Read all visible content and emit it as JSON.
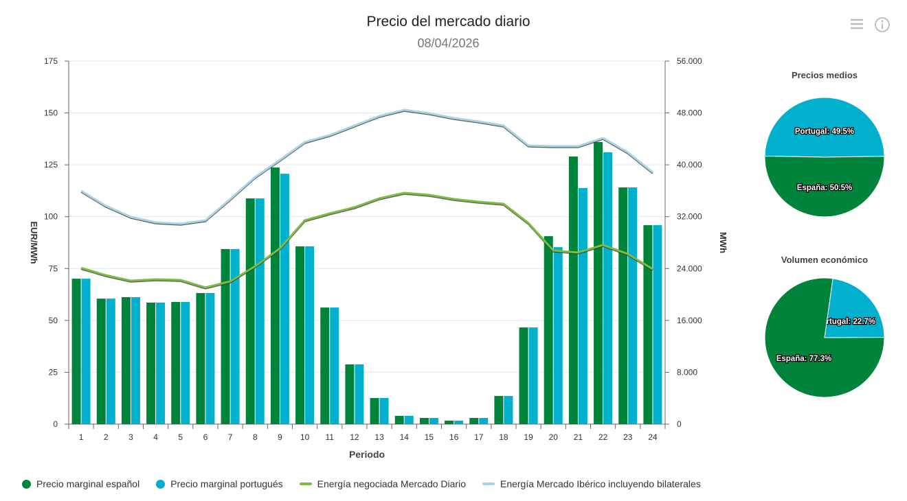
{
  "header": {
    "title": "Precio del mercado diario",
    "date": "08/04/2026",
    "menu_icon": "hamburger-menu-icon",
    "info_icon": "info-icon"
  },
  "colors": {
    "spain": "#00833a",
    "portugal": "#00b0cc",
    "energy_daily": "#7dbb42",
    "energy_iberian": "#a8d4e6",
    "shadow": "#333333"
  },
  "chart_data": [
    {
      "type": "bar+line",
      "title": "Precio del mercado diario",
      "subtitle": "08/04/2026",
      "xlabel": "Periodo",
      "ylabel": "EUR/MWh",
      "y2label": "MWh",
      "ylim": [
        0,
        175
      ],
      "y2lim": [
        0,
        56000
      ],
      "yticks": [
        "0",
        "25",
        "50",
        "75",
        "100",
        "125",
        "150",
        "175"
      ],
      "y2ticks": [
        "0",
        "8.000",
        "16.000",
        "24.000",
        "32.000",
        "40.000",
        "48.000",
        "56.000"
      ],
      "grid": true,
      "legend_position": "bottom-left",
      "categories": [
        "1",
        "2",
        "3",
        "4",
        "5",
        "6",
        "7",
        "8",
        "9",
        "10",
        "11",
        "12",
        "13",
        "14",
        "15",
        "16",
        "17",
        "18",
        "19",
        "20",
        "21",
        "22",
        "23",
        "24"
      ],
      "series": [
        {
          "name": "Precio marginal español",
          "type": "bar",
          "axis": "left",
          "values": [
            70.1,
            60.5,
            61.2,
            58.6,
            58.9,
            63.2,
            84.4,
            108.8,
            123.7,
            85.7,
            56.2,
            28.8,
            12.6,
            4.0,
            3.0,
            1.7,
            3.0,
            13.6,
            46.6,
            90.6,
            129.0,
            136.0,
            114.1,
            95.9
          ]
        },
        {
          "name": "Precio marginal portugués",
          "type": "bar",
          "axis": "left",
          "values": [
            70.1,
            60.5,
            61.2,
            58.6,
            58.9,
            63.2,
            84.4,
            108.8,
            120.7,
            85.7,
            56.2,
            28.8,
            12.6,
            4.0,
            3.0,
            1.7,
            3.0,
            13.6,
            46.6,
            85.3,
            113.8,
            131.0,
            114.1,
            95.9
          ]
        },
        {
          "name": "Energía negociada Mercado Diario",
          "type": "line",
          "axis": "right",
          "values": [
            24100,
            22970,
            22120,
            22340,
            22230,
            21070,
            22020,
            24350,
            27100,
            31440,
            32500,
            33450,
            34830,
            35670,
            35360,
            34720,
            34300,
            33980,
            31020,
            26780,
            26470,
            27630,
            26250,
            23920
          ]
        },
        {
          "name": "Energía Mercado Ibérico incluyendo bilaterales",
          "type": "line",
          "axis": "right",
          "values": [
            35990,
            33660,
            31970,
            31120,
            30910,
            31440,
            34720,
            38110,
            40760,
            43510,
            44570,
            46050,
            47530,
            48480,
            47950,
            47210,
            46680,
            46050,
            42980,
            42870,
            42870,
            44140,
            41920,
            38850
          ]
        }
      ]
    },
    {
      "type": "pie",
      "title": "Precios medios",
      "slices": [
        {
          "label": "Portugal: 49.5%",
          "name": "Portugal",
          "value": 49.5
        },
        {
          "label": "España: 50.5%",
          "name": "España",
          "value": 50.5
        }
      ]
    },
    {
      "type": "pie",
      "title": "Volumen económico",
      "slices": [
        {
          "label": "Portugal: 22.7%",
          "name": "Portugal",
          "value": 22.7
        },
        {
          "label": "España: 77.3%",
          "name": "España",
          "value": 77.3
        }
      ]
    }
  ]
}
